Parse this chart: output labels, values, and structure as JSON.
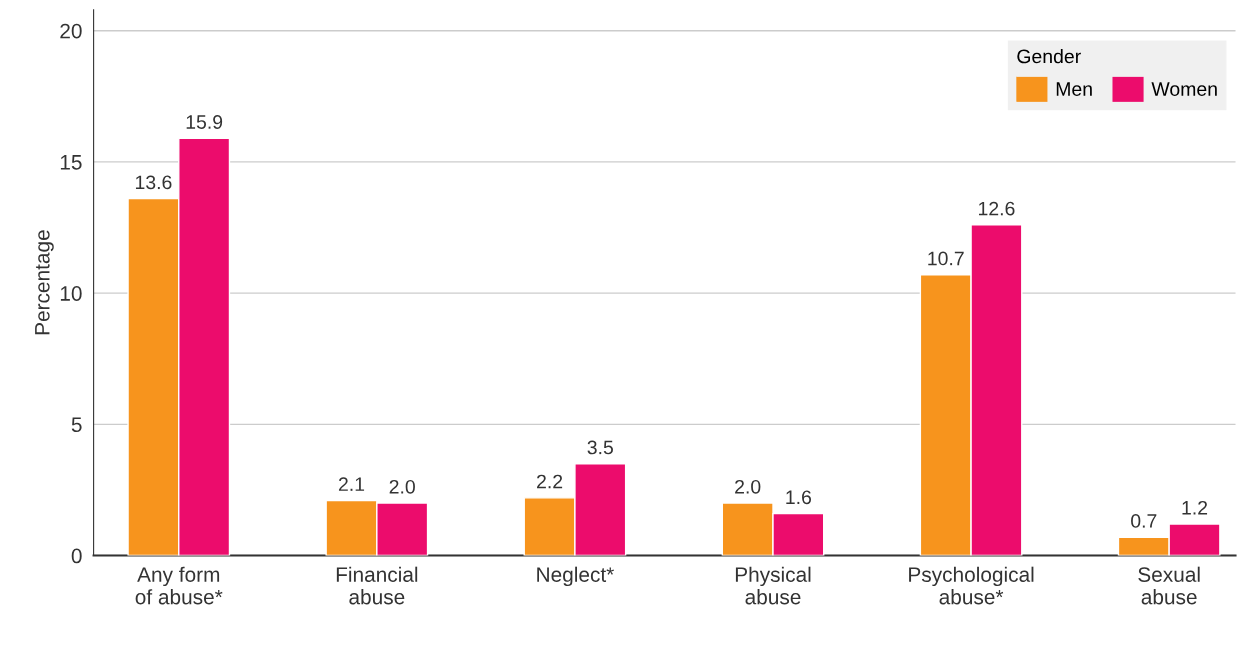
{
  "chart_data": {
    "type": "bar",
    "categories": [
      "Any form\nof abuse*",
      "Financial\nabuse",
      "Neglect*",
      "Physical\nabuse",
      "Psychological\nabuse*",
      "Sexual\nabuse"
    ],
    "series": [
      {
        "name": "Men",
        "color": "#f7941d",
        "values": [
          13.6,
          2.1,
          2.2,
          2.0,
          10.7,
          0.7
        ],
        "value_labels": [
          "13.6",
          "2.1",
          "2.2",
          "2.0",
          "10.7",
          "0.7"
        ]
      },
      {
        "name": "Women",
        "color": "#ec0c6c",
        "values": [
          15.9,
          2.0,
          3.5,
          1.6,
          12.6,
          1.2
        ],
        "value_labels": [
          "15.9",
          "2.0",
          "3.5",
          "1.6",
          "12.6",
          "1.2"
        ]
      }
    ],
    "ylabel": "Percentage",
    "legend_title": "Gender",
    "legend": "top right",
    "ylim": [
      0,
      20.8
    ],
    "yticks": [
      0,
      5,
      10,
      15,
      20
    ],
    "grid": "y"
  }
}
